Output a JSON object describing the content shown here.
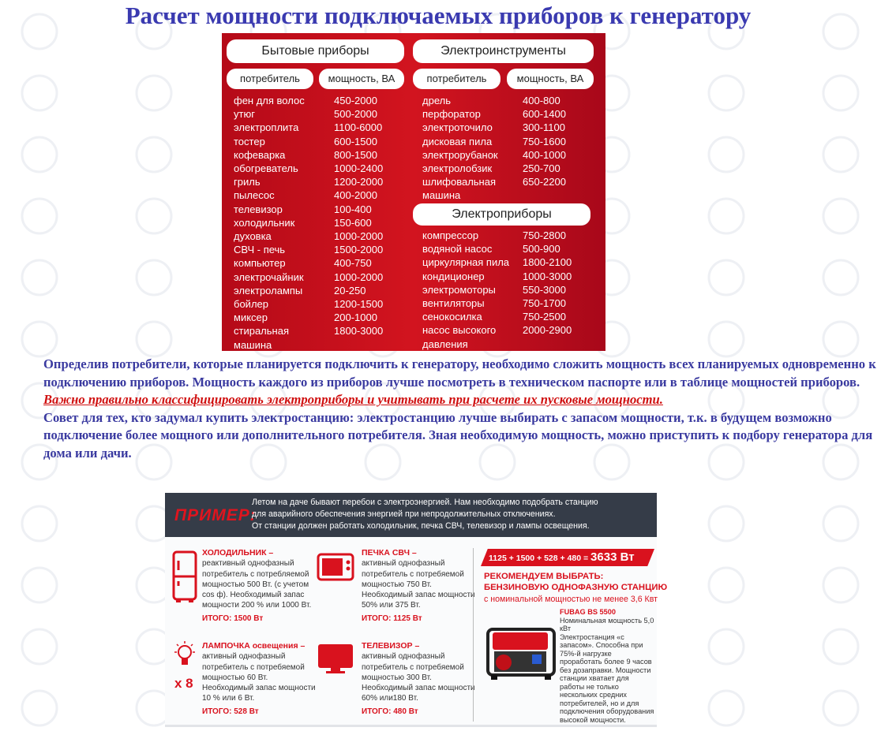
{
  "watermark": "ТЕХНОСОЮЗ",
  "title": "Расчет мощности подключаемых приборов к генератору",
  "table": {
    "household": {
      "title": "Бытовые приборы",
      "col1": "потребитель",
      "col2": "мощность, ВА",
      "rows": [
        [
          "фен для волос",
          "450-2000"
        ],
        [
          "утюг",
          "500-2000"
        ],
        [
          "электроплита",
          "1100-6000"
        ],
        [
          "тостер",
          "600-1500"
        ],
        [
          "кофеварка",
          "800-1500"
        ],
        [
          "обогреватель",
          "1000-2400"
        ],
        [
          "гриль",
          "1200-2000"
        ],
        [
          "пылесос",
          "400-2000"
        ],
        [
          "телевизор",
          "100-400"
        ],
        [
          "холодильник",
          "150-600"
        ],
        [
          "духовка",
          "1000-2000"
        ],
        [
          "СВЧ - печь",
          "1500-2000"
        ],
        [
          "компьютер",
          "400-750"
        ],
        [
          "электрочайник",
          "1000-2000"
        ],
        [
          "электролампы",
          "20-250"
        ],
        [
          "бойлер",
          "1200-1500"
        ],
        [
          "миксер",
          "200-1000"
        ],
        [
          "стиральная\nмашина",
          "1800-3000"
        ]
      ]
    },
    "tools": {
      "title": "Электроинструменты",
      "col1": "потребитель",
      "col2": "мощность, ВА",
      "rows": [
        [
          "дрель",
          "400-800"
        ],
        [
          "перфоратор",
          "600-1400"
        ],
        [
          "электроточило",
          "300-1100"
        ],
        [
          "дисковая пила",
          "750-1600"
        ],
        [
          "электрорубанок",
          "400-1000"
        ],
        [
          "электролобзик",
          "250-700"
        ],
        [
          "шлифовальная\nмашина",
          "650-2200"
        ]
      ]
    },
    "appliances": {
      "title": "Электроприборы",
      "rows": [
        [
          "компрессор",
          "750-2800"
        ],
        [
          "водяной насос",
          "500-900"
        ],
        [
          "циркулярная пила",
          "1800-2100"
        ],
        [
          "кондиционер",
          "1000-3000"
        ],
        [
          "электромоторы",
          "550-3000"
        ],
        [
          "вентиляторы",
          "750-1700"
        ],
        [
          "сенокосилка",
          "750-2500"
        ],
        [
          "насос высокого\nдавления",
          "2000-2900"
        ]
      ]
    }
  },
  "text": {
    "p1": "Определив потребители, которые планируется подключить к генератору, необходимо сложить мощность всех планируемых одновременно к подключению приборов. Мощность каждого из приборов лучше посмотреть в техническом паспорте или в таблице мощностей приборов. ",
    "link": "Важно правильно классифицировать электроприборы и учитывать при расчете их пусковые мощности.",
    "p2": "Совет для тех, кто задумал купить электростанцию: электростанцию лучше выбирать с запасом мощности, т.к. в будущем возможно подключение более мощного или дополнительного потребителя. Зная необходимую мощность, можно приступить к подбору генератора для дома или дачи."
  },
  "example": {
    "label": "ПРИМЕР:",
    "intro": "Летом на даче бывают перебои с электроэнергией. Нам необходимо подобрать станцию\nдля аварийного обеспечения энергией при непродолжительных отключениях.\nОт станции должен работать холодильник, печка СВЧ, телевизор и лампы освещения.",
    "items": [
      {
        "title": "ХОЛОДИЛЬНИК –",
        "body": "реактивный однофазный потребитель с потребляемой мощностью 500 Вт. (с учетом cos ф). Необходимый запас мощности 200 % или 1000 Вт.",
        "total": "ИТОГО: 1500 Вт",
        "icon": "fridge-icon"
      },
      {
        "title": "ПЕЧКА СВЧ –",
        "body": "активный однофазный потребитель с потребяемой мощностью 750 Вт. Необходимый запас мощности 50% или 375 Вт.",
        "total": "ИТОГО: 1125 Вт",
        "icon": "microwave-icon"
      },
      {
        "title": "ЛАМПОЧКА освещения –",
        "body": "активный однофазный потребитель с потребяемой мощностью 60 Вт. Необходимый запас мощности 10 % или 6 Вт.",
        "total": "ИТОГО: 528 Вт",
        "icon": "lightbulb-icon",
        "qty": "x 8"
      },
      {
        "title": "ТЕЛЕВИЗОР –",
        "body": "активный однофазный потребитель с потребяемой мощностью 300 Вт. Необходимый запас мощности 60% или180 Вт.",
        "total": "ИТОГО: 480 Вт",
        "icon": "tv-icon"
      }
    ],
    "sum": "1125 + 1500 + 528 + 480 =",
    "sum_total": "3633 Вт",
    "recommend": "РЕКОМЕНДУЕМ ВЫБРАТЬ:\nБЕНЗИНОВУЮ ОДНОФАЗНУЮ СТАНЦИЮ",
    "recommend_sub": "с номинальной мощностью не менее 3,6 Квт",
    "model": "FUBAG BS 5500",
    "model_desc": "Номинальная мощность 5,0 кВт\nЭлектростанция «с запасом». Способна при 75%-й нагрузке проработать более 9 часов без дозаправки. Мощности станции хватает для работы не только нескольких средних потребителей, но и для подключения оборудования высокой мощности."
  },
  "colors": {
    "title": "#3a3ab0",
    "panel_red": "#c8101c",
    "text": "#3a3aa0",
    "link": "#d01010",
    "accent_red": "#d9121e",
    "dark_header": "#353c48"
  }
}
